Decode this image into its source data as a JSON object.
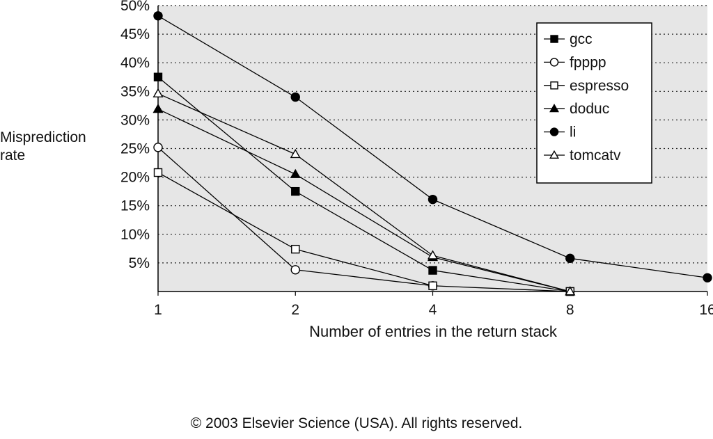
{
  "chart_data": {
    "type": "line",
    "title": "",
    "xlabel": "Number of entries in the return stack",
    "ylabel_lines": [
      "Misprediction",
      "rate"
    ],
    "x_scale": "log2",
    "x": [
      1,
      2,
      4,
      8,
      16
    ],
    "x_tick_labels": [
      "1",
      "2",
      "4",
      "8",
      "16"
    ],
    "ylim": [
      0,
      50
    ],
    "y_ticks": [
      5,
      10,
      15,
      20,
      25,
      30,
      35,
      40,
      45,
      50
    ],
    "y_tick_labels": [
      "5%",
      "10%",
      "15%",
      "20%",
      "25%",
      "30%",
      "35%",
      "40%",
      "45%",
      "50%"
    ],
    "grid": "horizontal dotted",
    "legend_position": "top-right",
    "plot_background": "#e6e6e6",
    "series": [
      {
        "name": "gcc",
        "marker": "filled-square",
        "x": [
          1,
          2,
          4,
          8
        ],
        "values": [
          37.5,
          17.5,
          3.7,
          0
        ]
      },
      {
        "name": "fpppp",
        "marker": "open-circle",
        "x": [
          1,
          2,
          4
        ],
        "values": [
          25.2,
          3.8,
          1.0
        ]
      },
      {
        "name": "espresso",
        "marker": "open-square",
        "x": [
          1,
          2,
          4,
          8
        ],
        "values": [
          20.8,
          7.4,
          1.0,
          0
        ]
      },
      {
        "name": "doduc",
        "marker": "filled-triangle",
        "x": [
          1,
          2,
          4,
          8
        ],
        "values": [
          31.9,
          20.5,
          6.0,
          0
        ]
      },
      {
        "name": "li",
        "marker": "filled-circle",
        "x": [
          1,
          2,
          4,
          8,
          16
        ],
        "values": [
          48.2,
          34.0,
          16.1,
          5.8,
          2.4
        ]
      },
      {
        "name": "tomcatv",
        "marker": "open-triangle",
        "x": [
          1,
          2,
          4,
          8
        ],
        "values": [
          34.6,
          24.0,
          6.3,
          0
        ]
      }
    ]
  },
  "footer": {
    "copyright": "© 2003 Elsevier Science (USA). All rights reserved."
  }
}
